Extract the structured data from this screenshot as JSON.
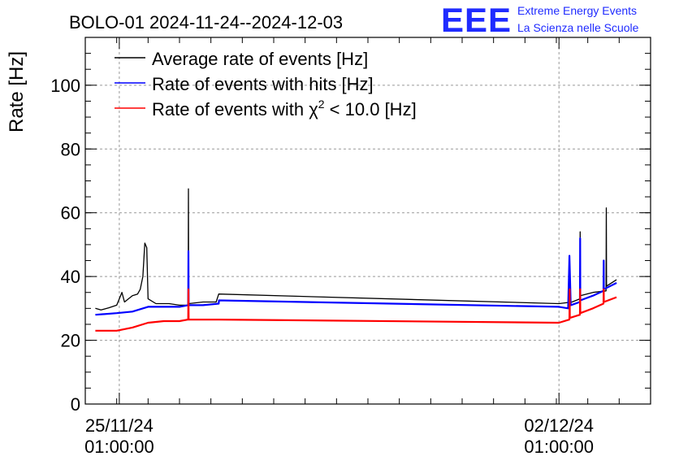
{
  "chart_data": {
    "type": "line",
    "title": "BOLO-01 2024-11-24--2024-12-03",
    "ylabel": "Rate [Hz]",
    "xlabel": "",
    "x_range_days": [
      "2024-11-24 12:00",
      "2024-12-03 12:00"
    ],
    "ylim": [
      0,
      115
    ],
    "yticks": [
      0,
      20,
      40,
      60,
      80,
      100
    ],
    "xticks": [
      {
        "date": "2024-11-25 01:00",
        "label_line1": "25/11/24",
        "label_line2": "01:00:00"
      },
      {
        "date": "2024-12-02 01:00",
        "label_line1": "02/12/24",
        "label_line2": "01:00:00"
      }
    ],
    "grid": true,
    "legend_position": "top-left",
    "series": [
      {
        "name": "Average rate of events [Hz]",
        "color": "#000000",
        "points": [
          [
            "2024-11-24 15:50",
            30
          ],
          [
            "2024-11-24 18:00",
            29.5
          ],
          [
            "2024-11-24 21:00",
            30.2
          ],
          [
            "2024-11-25 00:00",
            31
          ],
          [
            "2024-11-25 01:00",
            33
          ],
          [
            "2024-11-25 02:00",
            35
          ],
          [
            "2024-11-25 03:00",
            32
          ],
          [
            "2024-11-25 06:00",
            34
          ],
          [
            "2024-11-25 08:00",
            34.5
          ],
          [
            "2024-11-25 09:00",
            36
          ],
          [
            "2024-11-25 10:00",
            40
          ],
          [
            "2024-11-25 10:45",
            50.5
          ],
          [
            "2024-11-25 11:30",
            49
          ],
          [
            "2024-11-25 12:00",
            33
          ],
          [
            "2024-11-25 15:00",
            31.5
          ],
          [
            "2024-11-25 20:00",
            31.5
          ],
          [
            "2024-11-26 00:00",
            31
          ],
          [
            "2024-11-26 03:20",
            31
          ],
          [
            "2024-11-26 03:25",
            67.5
          ],
          [
            "2024-11-26 03:30",
            31.5
          ],
          [
            "2024-11-26 09:00",
            32
          ],
          [
            "2024-11-26 14:00",
            32
          ],
          [
            "2024-11-26 15:00",
            34.5
          ],
          [
            "2024-12-02 01:00",
            31.5
          ],
          [
            "2024-12-02 06:00",
            32
          ],
          [
            "2024-12-02 09:00",
            33
          ],
          [
            "2024-12-02 09:05",
            54
          ],
          [
            "2024-12-02 09:10",
            34
          ],
          [
            "2024-12-02 14:00",
            35
          ],
          [
            "2024-12-02 19:00",
            35.5
          ],
          [
            "2024-12-02 19:05",
            61.5
          ],
          [
            "2024-12-02 19:10",
            37
          ],
          [
            "2024-12-02 23:00",
            39
          ]
        ]
      },
      {
        "name": "Rate of events with hits [Hz]",
        "color": "#0000ff",
        "points": [
          [
            "2024-11-24 15:50",
            28
          ],
          [
            "2024-11-25 00:00",
            28.5
          ],
          [
            "2024-11-25 06:00",
            29
          ],
          [
            "2024-11-25 12:00",
            30.5
          ],
          [
            "2024-11-25 18:00",
            30.5
          ],
          [
            "2024-11-26 00:00",
            30.5
          ],
          [
            "2024-11-26 03:20",
            31
          ],
          [
            "2024-11-26 03:25",
            48
          ],
          [
            "2024-11-26 03:30",
            31
          ],
          [
            "2024-11-26 09:00",
            31
          ],
          [
            "2024-11-26 15:00",
            31.5
          ],
          [
            "2024-11-26 15:05",
            32.5
          ],
          [
            "2024-12-02 01:00",
            30.5
          ],
          [
            "2024-12-02 04:30",
            30
          ],
          [
            "2024-12-02 05:00",
            46.5
          ],
          [
            "2024-12-02 05:30",
            31
          ],
          [
            "2024-12-02 09:00",
            32
          ],
          [
            "2024-12-02 09:05",
            52
          ],
          [
            "2024-12-02 09:10",
            32.5
          ],
          [
            "2024-12-02 14:00",
            34
          ],
          [
            "2024-12-02 18:00",
            35.5
          ],
          [
            "2024-12-02 18:05",
            45
          ],
          [
            "2024-12-02 18:10",
            36
          ],
          [
            "2024-12-02 23:00",
            38
          ]
        ]
      },
      {
        "name": "Rate of events with χ² < 10.0 [Hz]",
        "color": "#ff0000",
        "points": [
          [
            "2024-11-24 15:50",
            23
          ],
          [
            "2024-11-25 00:00",
            23
          ],
          [
            "2024-11-25 06:00",
            24
          ],
          [
            "2024-11-25 12:00",
            25.5
          ],
          [
            "2024-11-25 18:00",
            26
          ],
          [
            "2024-11-26 00:00",
            26
          ],
          [
            "2024-11-26 03:20",
            26.5
          ],
          [
            "2024-11-26 03:25",
            36
          ],
          [
            "2024-11-26 03:30",
            26.5
          ],
          [
            "2024-11-26 09:00",
            26.5
          ],
          [
            "2024-11-26 15:00",
            26.5
          ],
          [
            "2024-11-26 15:05",
            26.5
          ],
          [
            "2024-12-02 01:00",
            25.5
          ],
          [
            "2024-12-02 05:00",
            26.5
          ],
          [
            "2024-12-02 05:05",
            36
          ],
          [
            "2024-12-02 05:10",
            27
          ],
          [
            "2024-12-02 09:00",
            28
          ],
          [
            "2024-12-02 09:05",
            36
          ],
          [
            "2024-12-02 09:10",
            28.5
          ],
          [
            "2024-12-02 14:00",
            30
          ],
          [
            "2024-12-02 18:00",
            31.5
          ],
          [
            "2024-12-02 18:05",
            36
          ],
          [
            "2024-12-02 18:10",
            32
          ],
          [
            "2024-12-02 23:00",
            33.5
          ]
        ]
      }
    ]
  },
  "logo": {
    "letters": "EEE",
    "line1": "Extreme Energy Events",
    "line2": "La Scienza nelle Scuole"
  },
  "legend": {
    "item1": "Average rate of events [Hz]",
    "item2": "Rate of events with hits [Hz]",
    "item3_prefix": "Rate of events with χ",
    "item3_sup": "2",
    "item3_suffix": " < 10.0 [Hz]"
  }
}
